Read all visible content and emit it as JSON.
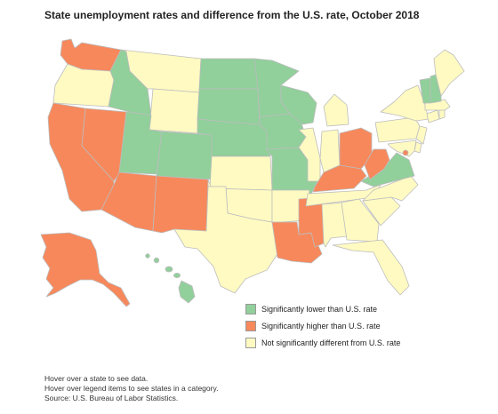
{
  "title": "State unemployment rates and difference from the U.S. rate, October 2018",
  "colors": {
    "lower": "#91cf9b",
    "higher": "#f7885b",
    "same": "#fffac2",
    "border": "#bdbdbd"
  },
  "legend": [
    {
      "category": "lower",
      "label": "Significantly lower than U.S. rate"
    },
    {
      "category": "higher",
      "label": "Significantly higher than U.S. rate"
    },
    {
      "category": "same",
      "label": "Not significantly different from U.S. rate"
    }
  ],
  "states": {
    "WA": "higher",
    "OR": "same",
    "CA": "higher",
    "NV": "higher",
    "ID": "lower",
    "MT": "same",
    "WY": "same",
    "UT": "lower",
    "AZ": "higher",
    "CO": "lower",
    "NM": "higher",
    "ND": "lower",
    "SD": "lower",
    "NE": "lower",
    "KS": "same",
    "OK": "same",
    "TX": "same",
    "MN": "lower",
    "IA": "lower",
    "MO": "lower",
    "AR": "same",
    "LA": "higher",
    "WI": "lower",
    "IL": "same",
    "MS": "higher",
    "MI": "same",
    "IN": "same",
    "OH": "higher",
    "KY": "higher",
    "TN": "same",
    "AL": "same",
    "GA": "same",
    "FL": "same",
    "SC": "same",
    "NC": "same",
    "VA": "lower",
    "WV": "higher",
    "PA": "same",
    "NY": "same",
    "ME": "same",
    "VT": "lower",
    "NH": "lower",
    "MA": "same",
    "CT": "same",
    "RI": "same",
    "NJ": "same",
    "DE": "same",
    "MD": "same",
    "DC": "higher",
    "AK": "higher",
    "HI": "lower"
  },
  "notes": [
    "Hover over a state to see data.",
    "Hover over legend items to see states in a category.",
    "Source: U.S. Bureau of Labor Statistics."
  ]
}
